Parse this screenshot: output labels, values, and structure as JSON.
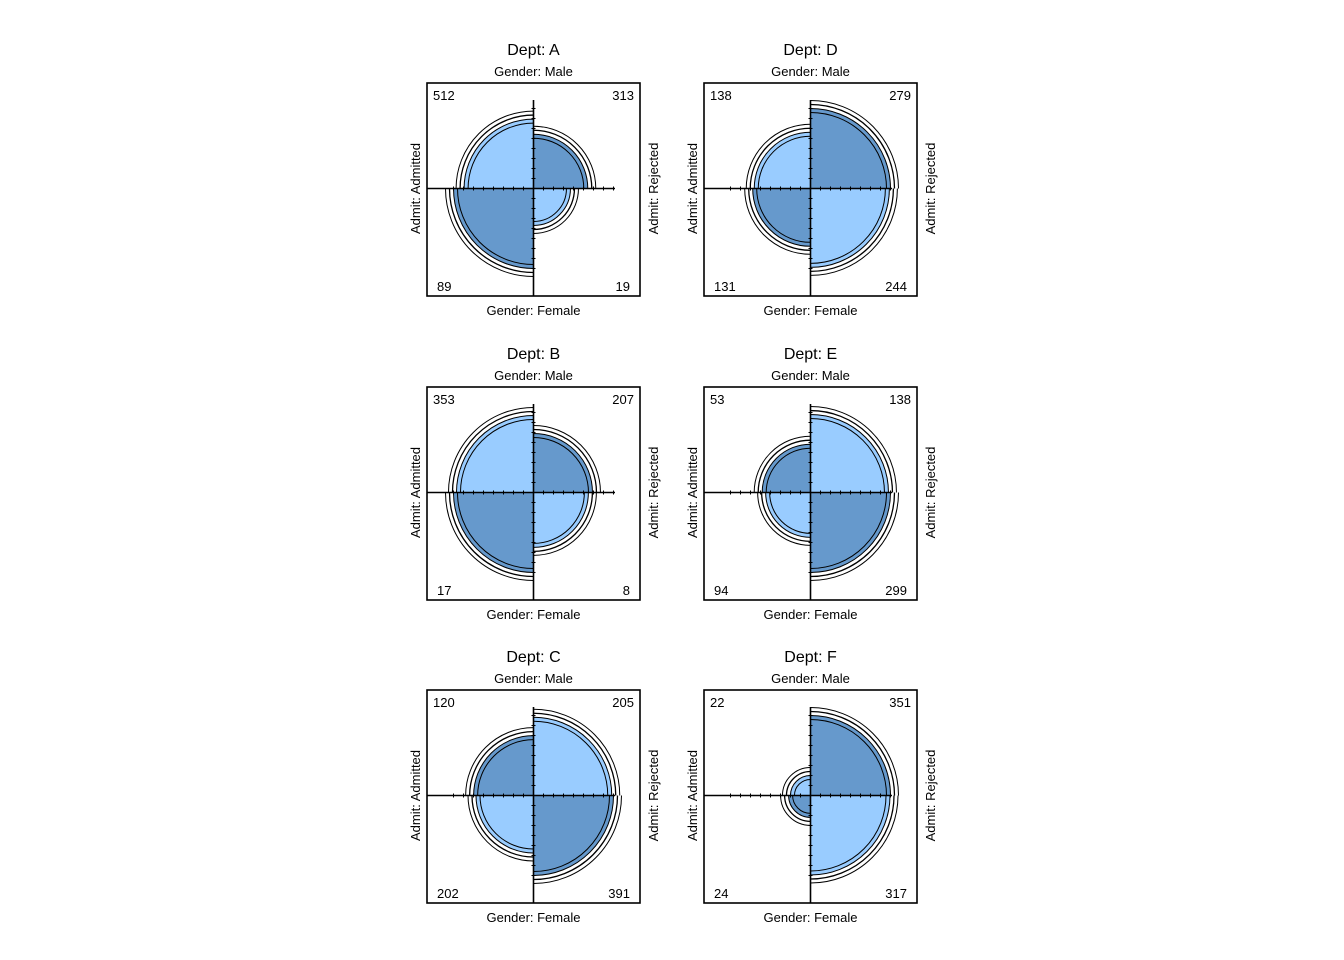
{
  "chart_data": {
    "type": "fourfold",
    "colors": {
      "light": "#99CCFF",
      "dark": "#6699CC",
      "line": "#000000"
    },
    "panels": [
      {
        "title": "Dept: A",
        "top_label": "Gender: Male",
        "bottom_label": "Gender: Female",
        "left_label": "Admit: Admitted",
        "right_label": "Admit: Rejected",
        "counts": {
          "top_left": 512,
          "top_right": 313,
          "bottom_left": 89,
          "bottom_right": 19
        },
        "labels": {
          "top_left": "512",
          "top_right": "313",
          "bottom_left": "89",
          "bottom_right": "19"
        }
      },
      {
        "title": "Dept: D",
        "top_label": "Gender: Male",
        "bottom_label": "Gender: Female",
        "left_label": "Admit: Admitted",
        "right_label": "Admit: Rejected",
        "counts": {
          "top_left": 138,
          "top_right": 279,
          "bottom_left": 131,
          "bottom_right": 244
        },
        "labels": {
          "top_left": "138",
          "top_right": "279",
          "bottom_left": "131",
          "bottom_right": "244"
        }
      },
      {
        "title": "Dept: B",
        "top_label": "Gender: Male",
        "bottom_label": "Gender: Female",
        "left_label": "Admit: Admitted",
        "right_label": "Admit: Rejected",
        "counts": {
          "top_left": 353,
          "top_right": 207,
          "bottom_left": 17,
          "bottom_right": 8
        },
        "labels": {
          "top_left": "353",
          "top_right": "207",
          "bottom_left": "17",
          "bottom_right": "8"
        }
      },
      {
        "title": "Dept: E",
        "top_label": "Gender: Male",
        "bottom_label": "Gender: Female",
        "left_label": "Admit: Admitted",
        "right_label": "Admit: Rejected",
        "counts": {
          "top_left": 53,
          "top_right": 138,
          "bottom_left": 94,
          "bottom_right": 299
        },
        "labels": {
          "top_left": "53",
          "top_right": "138",
          "bottom_left": "94",
          "bottom_right": "299"
        }
      },
      {
        "title": "Dept: C",
        "top_label": "Gender: Male",
        "bottom_label": "Gender: Female",
        "left_label": "Admit: Admitted",
        "right_label": "Admit: Rejected",
        "counts": {
          "top_left": 120,
          "top_right": 205,
          "bottom_left": 202,
          "bottom_right": 391
        },
        "labels": {
          "top_left": "120",
          "top_right": "205",
          "bottom_left": "202",
          "bottom_right": "391"
        }
      },
      {
        "title": "Dept: F",
        "top_label": "Gender: Male",
        "bottom_label": "Gender: Female",
        "left_label": "Admit: Admitted",
        "right_label": "Admit: Rejected",
        "counts": {
          "top_left": 22,
          "top_right": 351,
          "bottom_left": 24,
          "bottom_right": 317
        },
        "labels": {
          "top_left": "22",
          "top_right": "351",
          "bottom_left": "24",
          "bottom_right": "317"
        }
      }
    ]
  }
}
